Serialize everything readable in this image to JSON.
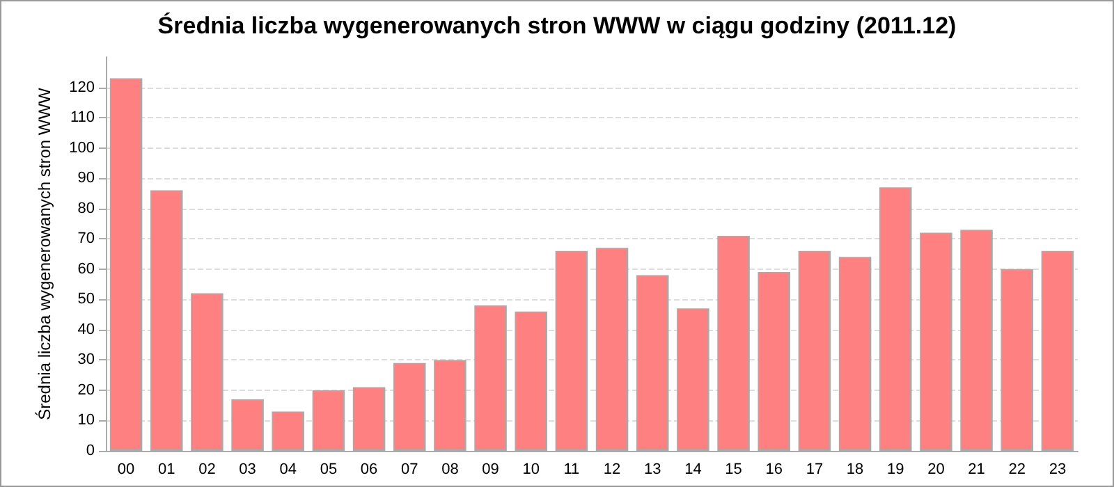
{
  "chart_data": {
    "type": "bar",
    "title": "Średnia liczba wygenerowanych stron WWW w ciągu godziny (2011.12)",
    "ylabel": "Średnia liczba wygenerowanych stron WWW",
    "categories": [
      "00",
      "01",
      "02",
      "03",
      "04",
      "05",
      "06",
      "07",
      "08",
      "09",
      "10",
      "11",
      "12",
      "13",
      "14",
      "15",
      "16",
      "17",
      "18",
      "19",
      "20",
      "21",
      "22",
      "23"
    ],
    "values": [
      123,
      86,
      52,
      17,
      13,
      20,
      21,
      29,
      30,
      48,
      46,
      66,
      67,
      58,
      47,
      71,
      59,
      66,
      64,
      87,
      72,
      73,
      60,
      66
    ],
    "color": "#ff8080",
    "ylim": [
      0,
      130
    ],
    "yticks": [
      0,
      10,
      20,
      30,
      40,
      50,
      60,
      70,
      80,
      90,
      100,
      110,
      120
    ],
    "grid": "y"
  }
}
